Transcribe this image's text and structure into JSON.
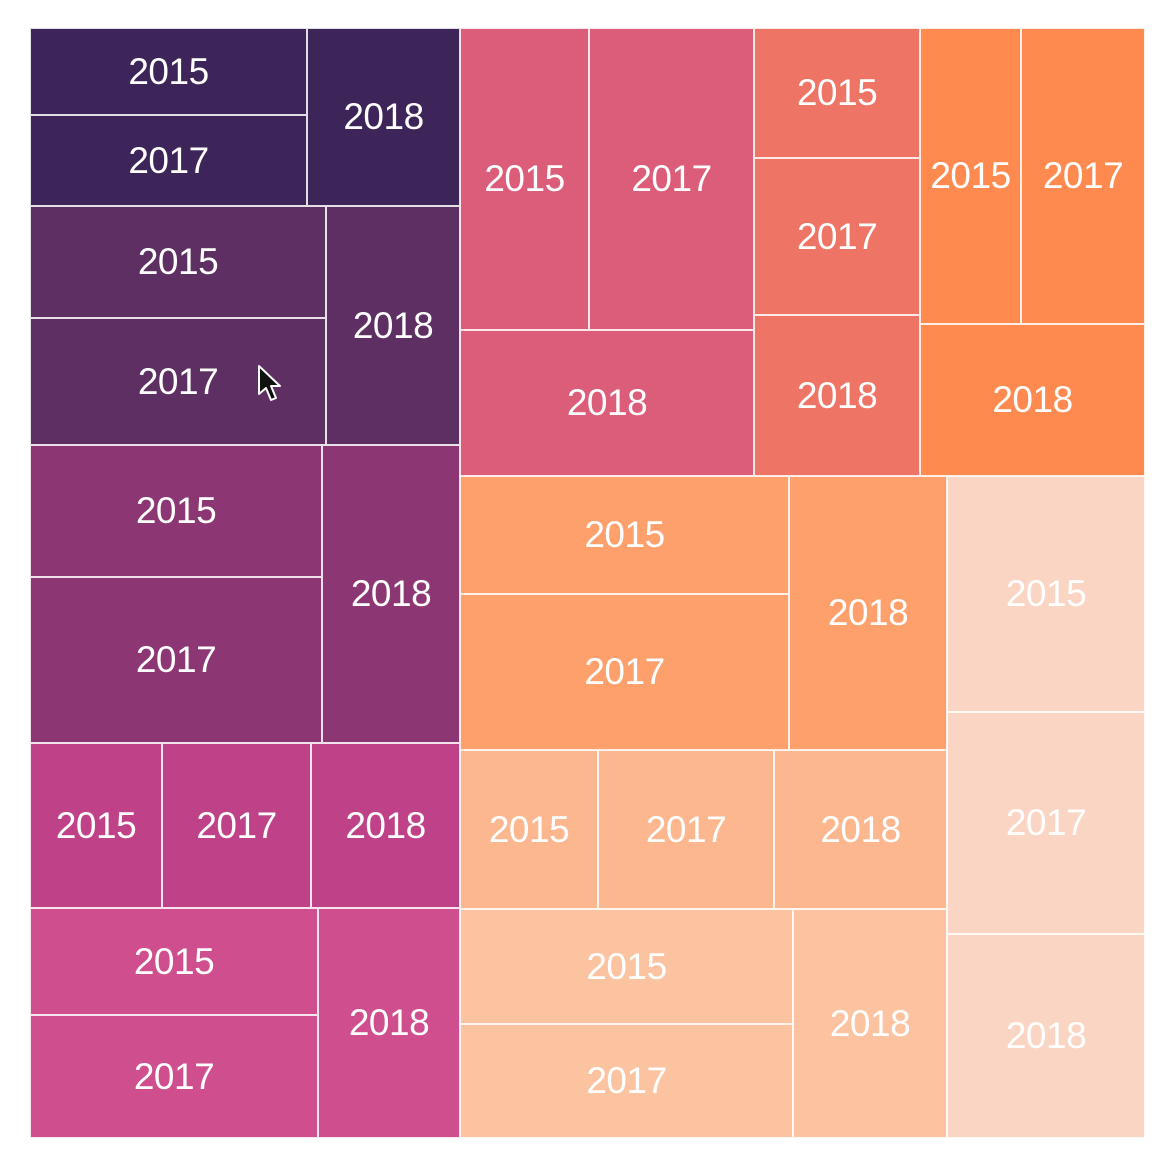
{
  "chart_data": {
    "type": "treemap",
    "groups": [
      {
        "color": "#3d2459",
        "children": [
          {
            "label": "2015"
          },
          {
            "label": "2017"
          },
          {
            "label": "2018"
          }
        ]
      },
      {
        "color": "#5e2f62",
        "children": [
          {
            "label": "2015"
          },
          {
            "label": "2017"
          },
          {
            "label": "2018"
          }
        ]
      },
      {
        "color": "#8c3674",
        "children": [
          {
            "label": "2015"
          },
          {
            "label": "2017"
          },
          {
            "label": "2018"
          }
        ]
      },
      {
        "color": "#bf4289",
        "children": [
          {
            "label": "2015"
          },
          {
            "label": "2017"
          },
          {
            "label": "2018"
          }
        ]
      },
      {
        "color": "#cf4e8d",
        "children": [
          {
            "label": "2015"
          },
          {
            "label": "2017"
          },
          {
            "label": "2018"
          }
        ]
      },
      {
        "color": "#dc5d7a",
        "children": [
          {
            "label": "2015"
          },
          {
            "label": "2017"
          },
          {
            "label": "2018"
          }
        ]
      },
      {
        "color": "#ee7466",
        "children": [
          {
            "label": "2015"
          },
          {
            "label": "2017"
          },
          {
            "label": "2018"
          }
        ]
      },
      {
        "color": "#fe8a50",
        "children": [
          {
            "label": "2015"
          },
          {
            "label": "2017"
          },
          {
            "label": "2018"
          }
        ]
      },
      {
        "color": "#fea06c",
        "children": [
          {
            "label": "2015"
          },
          {
            "label": "2017"
          },
          {
            "label": "2018"
          }
        ]
      },
      {
        "color": "#fcb78e",
        "children": [
          {
            "label": "2015"
          },
          {
            "label": "2017"
          },
          {
            "label": "2018"
          }
        ]
      },
      {
        "color": "#fcc3a0",
        "children": [
          {
            "label": "2015"
          },
          {
            "label": "2017"
          },
          {
            "label": "2018"
          }
        ]
      },
      {
        "color": "#fbd5c3",
        "children": [
          {
            "label": "2015"
          },
          {
            "label": "2017"
          },
          {
            "label": "2018"
          }
        ]
      }
    ],
    "legend": "none",
    "grid": false
  },
  "cursor": {
    "icon": "mouse-pointer-icon"
  }
}
